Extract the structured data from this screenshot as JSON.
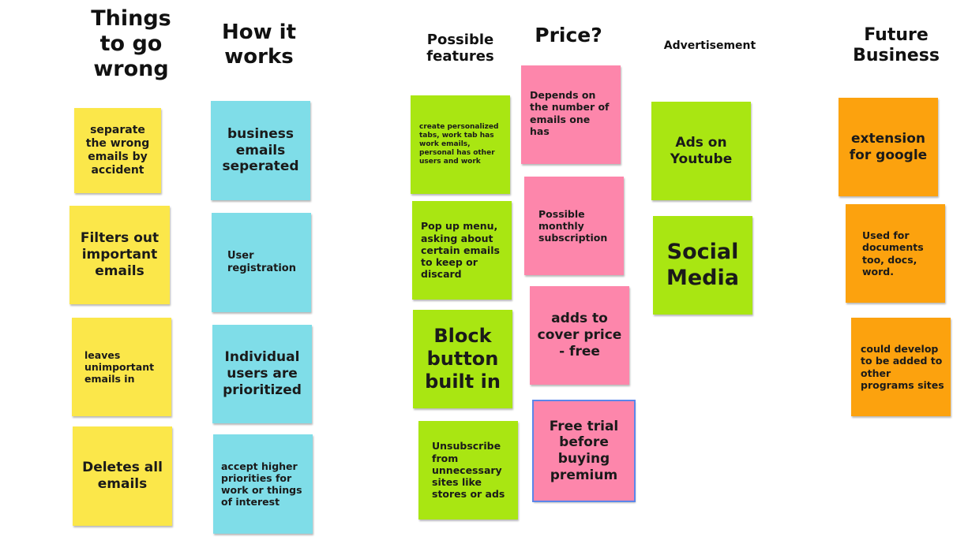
{
  "headings": {
    "things_to_go_wrong": "Things to go wrong",
    "how_it_works": "How it works",
    "possible_features": "Possible features",
    "price": "Price?",
    "advertisement": "Advertisement",
    "future_business": "Future Business"
  },
  "colors": {
    "yellow": "#fbe74a",
    "cyan": "#7fdde8",
    "green": "#a9e612",
    "pink": "#fd86ab",
    "orange": "#fca20e",
    "selection": "#5b86ea"
  },
  "notes": {
    "things_to_go_wrong": [
      "separate the wrong emails by accident",
      "Filters out important emails",
      "leaves unimportant emails in",
      "Deletes all emails"
    ],
    "how_it_works": [
      "business emails seperated",
      "User registration",
      "Individual users are prioritized",
      "accept higher priorities for work or things of interest"
    ],
    "possible_features": [
      "create personalized tabs, work tab has work emails, personal has other users and work",
      "Pop up menu, asking about certain emails to keep or discard",
      "Block button built in",
      "Unsubscribe from unnecessary sites like stores or ads"
    ],
    "price": [
      "Depends on the number of emails one has",
      "Possible monthly subscription",
      "adds to cover price - free",
      "Free trial before buying premium"
    ],
    "advertisement": [
      "Ads on Youtube",
      "Social Media"
    ],
    "future_business": [
      "extension for google",
      "Used for documents too, docs, word.",
      "could develop to be added to other programs sites"
    ]
  }
}
